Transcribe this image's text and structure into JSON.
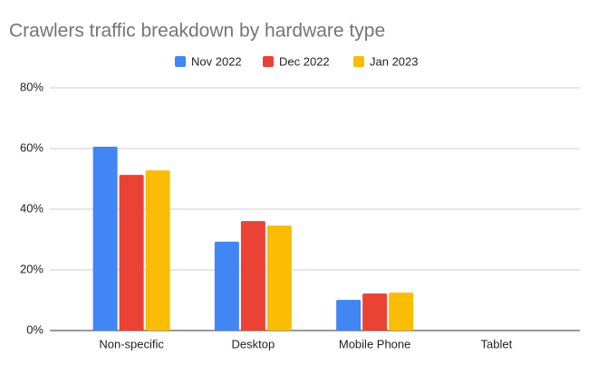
{
  "chart_data": {
    "type": "bar",
    "title": "Crawlers traffic breakdown by hardware type",
    "categories": [
      "Non-specific",
      "Desktop",
      "Mobile Phone",
      "Tablet"
    ],
    "series": [
      {
        "name": "Nov 2022",
        "color": "#4285f4",
        "values": [
          60.6,
          29.3,
          10.1,
          0
        ]
      },
      {
        "name": "Dec 2022",
        "color": "#ea4335",
        "values": [
          51.3,
          36.1,
          12.2,
          0
        ]
      },
      {
        "name": "Jan 2023",
        "color": "#fbbc04",
        "values": [
          52.8,
          34.6,
          12.5,
          0
        ]
      }
    ],
    "ylim": [
      0,
      80
    ],
    "yticks": [
      {
        "value": 0,
        "label": "0%"
      },
      {
        "value": 20,
        "label": "20%"
      },
      {
        "value": 40,
        "label": "40%"
      },
      {
        "value": 60,
        "label": "60%"
      },
      {
        "value": 80,
        "label": "80%"
      }
    ],
    "grid": true,
    "legend": "top"
  }
}
